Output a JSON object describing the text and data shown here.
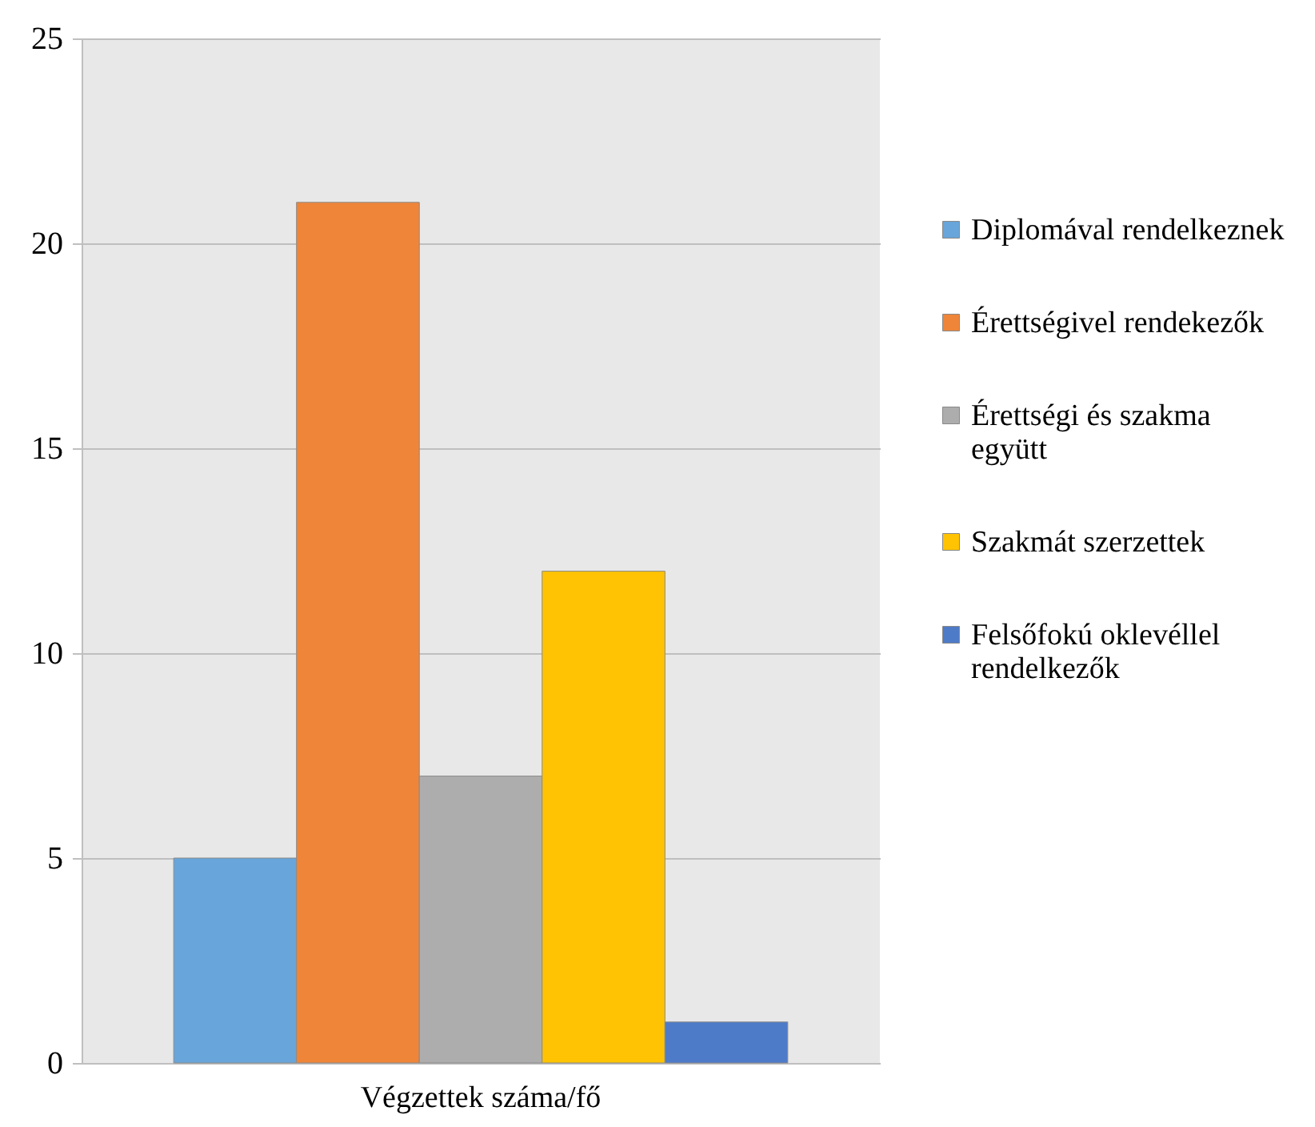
{
  "chart_data": {
    "type": "bar",
    "categories": [
      "Végzettek száma/fő"
    ],
    "series": [
      {
        "name": "Diplomával rendelkeznek",
        "color": "#68a5da",
        "values": [
          5
        ]
      },
      {
        "name": "Érettségivel rendekezők",
        "color": "#ef8539",
        "values": [
          21
        ]
      },
      {
        "name": "Érettségi és szakma együtt",
        "color": "#adadad",
        "values": [
          7
        ]
      },
      {
        "name": "Szakmát szerzettek",
        "color": "#ffc303",
        "values": [
          12
        ]
      },
      {
        "name": "Felsőfokú oklevéllel rendelkezők",
        "color": "#4e7bc8",
        "values": [
          1
        ]
      }
    ],
    "ylim": [
      0,
      25
    ],
    "yticks": [
      0,
      5,
      10,
      15,
      20,
      25
    ],
    "grid": "y",
    "legend": "right"
  }
}
